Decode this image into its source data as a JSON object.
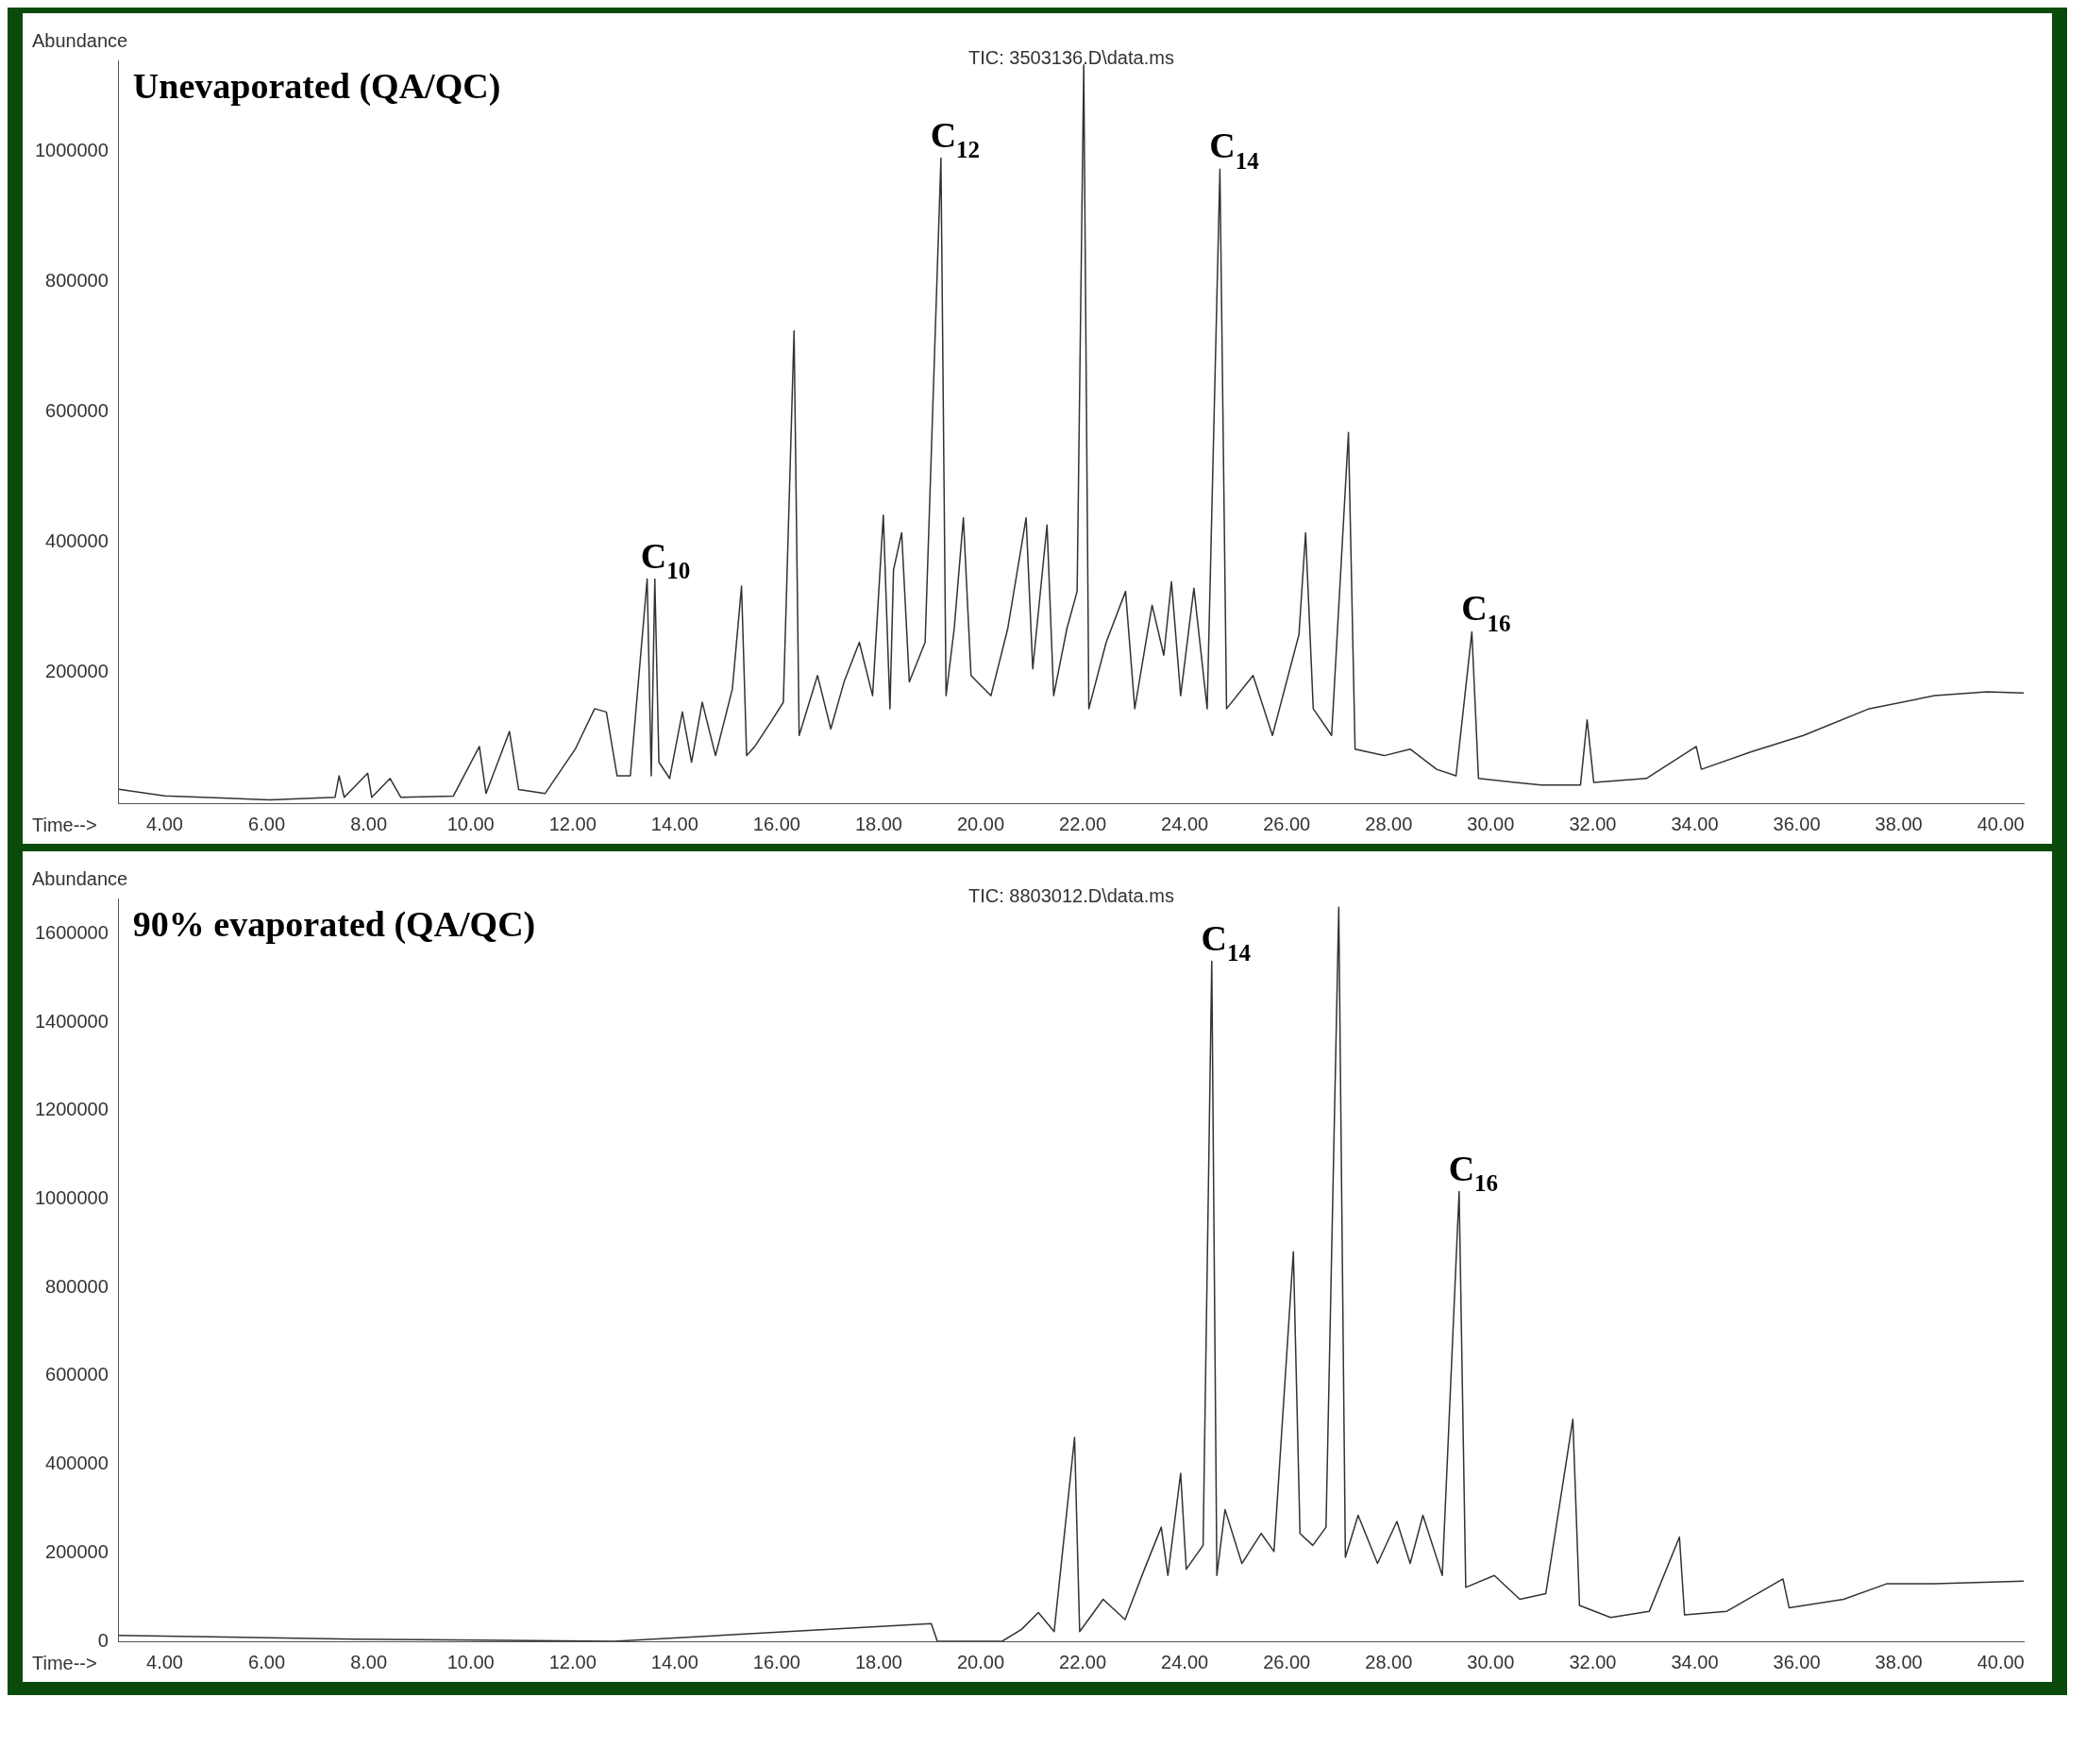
{
  "chart_data": [
    {
      "type": "line",
      "title": "TIC: 3503136.D\\data.ms",
      "xlabel": "Time-->",
      "ylabel": "Abundance",
      "annotations": [
        "Unevaporated (QA/QC)",
        {
          "text": "C$_{10}$",
          "x": 13.54,
          "y": 344000
        },
        {
          "text": "C$_{12}$",
          "x": 19.22,
          "y": 990000
        },
        {
          "text": "C$_{14}$",
          "x": 24.69,
          "y": 973000
        },
        {
          "text": "C$_{16}$",
          "x": 29.63,
          "y": 263000
        }
      ],
      "xlim": [
        3.1,
        40.45
      ],
      "xticks": [
        {
          "value": 4,
          "label": "4.00"
        },
        {
          "value": 6,
          "label": "6.00"
        },
        {
          "value": 8,
          "label": "8.00"
        },
        {
          "value": 10,
          "label": "10.00"
        },
        {
          "value": 12,
          "label": "12.00"
        },
        {
          "value": 14,
          "label": "14.00"
        },
        {
          "value": 16,
          "label": "16.00"
        },
        {
          "value": 18,
          "label": "18.00"
        },
        {
          "value": 20,
          "label": "20.00"
        },
        {
          "value": 22,
          "label": "22.00"
        },
        {
          "value": 24,
          "label": "24.00"
        },
        {
          "value": 26,
          "label": "26.00"
        },
        {
          "value": 28,
          "label": "28.00"
        },
        {
          "value": 30,
          "label": "30.00"
        },
        {
          "value": 32,
          "label": "32.00"
        },
        {
          "value": 34,
          "label": "34.00"
        },
        {
          "value": 36,
          "label": "36.00"
        },
        {
          "value": 38,
          "label": "38.00"
        },
        {
          "value": 40,
          "label": "40.00"
        }
      ],
      "ylim": [
        0,
        1140000
      ],
      "yticks": [
        200000,
        400000,
        600000,
        800000,
        1000000
      ],
      "series": [
        {
          "color": "#333333",
          "x": [
            3.1,
            4.0,
            6.06,
            7.34,
            7.42,
            7.52,
            7.98,
            8.06,
            8.42,
            8.63,
            9.66,
            10.17,
            10.3,
            10.76,
            10.94,
            11.46,
            12.05,
            12.43,
            12.66,
            12.87,
            13.13,
            13.46,
            13.54,
            13.61,
            13.69,
            13.9,
            14.15,
            14.33,
            14.54,
            14.8,
            15.13,
            15.31,
            15.41,
            15.57,
            15.88,
            16.13,
            16.34,
            16.44,
            16.8,
            17.06,
            17.32,
            17.62,
            17.88,
            18.09,
            18.22,
            18.29,
            18.45,
            18.6,
            18.91,
            19.22,
            19.32,
            19.48,
            19.66,
            19.81,
            20.2,
            20.53,
            20.89,
            21.02,
            21.3,
            21.43,
            21.69,
            21.89,
            22.02,
            22.12,
            22.46,
            22.84,
            23.02,
            23.36,
            23.59,
            23.74,
            23.92,
            24.18,
            24.44,
            24.69,
            24.82,
            25.34,
            25.72,
            26.24,
            26.37,
            26.52,
            26.88,
            27.21,
            27.34,
            27.91,
            28.42,
            28.94,
            29.32,
            29.63,
            29.76,
            30.48,
            30.99,
            31.76,
            31.89,
            32.02,
            33.05,
            34.03,
            34.13,
            35.11,
            36.13,
            37.42,
            38.7,
            39.73,
            40.45
          ],
          "values": [
            21500,
            11300,
            5100,
            9200,
            42000,
            9000,
            46000,
            9000,
            38000,
            9000,
            11000,
            87000,
            15000,
            110000,
            21000,
            15000,
            83000,
            145000,
            140000,
            42000,
            42000,
            344000,
            42000,
            344000,
            63000,
            38000,
            140000,
            63000,
            155000,
            73000,
            175000,
            333000,
            73000,
            87000,
            124000,
            155000,
            725000,
            104000,
            196000,
            114000,
            186000,
            247000,
            165000,
            442000,
            145000,
            358000,
            415000,
            186000,
            247000,
            990000,
            165000,
            268000,
            438000,
            196000,
            165000,
            268000,
            438000,
            206000,
            427000,
            165000,
            268000,
            325000,
            1133000,
            145000,
            247000,
            325000,
            145000,
            304000,
            227000,
            340000,
            165000,
            330000,
            145000,
            973000,
            145000,
            196000,
            104000,
            259000,
            415000,
            145000,
            104000,
            569000,
            83000,
            73000,
            83000,
            52000,
            42000,
            263000,
            38000,
            32000,
            28000,
            28000,
            128000,
            32000,
            38000,
            87000,
            52000,
            79000,
            104000,
            145000,
            165000,
            171000,
            169000
          ]
        }
      ]
    },
    {
      "type": "line",
      "title": "TIC: 8803012.D\\data.ms",
      "xlabel": "Time-->",
      "ylabel": "Abundance",
      "annotations": [
        "90% evaporated (QA/QC)",
        {
          "text": "C$_{14}$",
          "x": 24.53,
          "y": 1538000
        },
        {
          "text": "C$_{16}$",
          "x": 29.38,
          "y": 1017000
        }
      ],
      "xlim": [
        3.1,
        40.45
      ],
      "xticks": [
        {
          "value": 4,
          "label": "4.00"
        },
        {
          "value": 6,
          "label": "6.00"
        },
        {
          "value": 8,
          "label": "8.00"
        },
        {
          "value": 10,
          "label": "10.00"
        },
        {
          "value": 12,
          "label": "12.00"
        },
        {
          "value": 14,
          "label": "14.00"
        },
        {
          "value": 16,
          "label": "16.00"
        },
        {
          "value": 18,
          "label": "18.00"
        },
        {
          "value": 20,
          "label": "20.00"
        },
        {
          "value": 22,
          "label": "22.00"
        },
        {
          "value": 24,
          "label": "24.00"
        },
        {
          "value": 26,
          "label": "26.00"
        },
        {
          "value": 28,
          "label": "28.00"
        },
        {
          "value": 30,
          "label": "30.00"
        },
        {
          "value": 32,
          "label": "32.00"
        },
        {
          "value": 34,
          "label": "34.00"
        },
        {
          "value": 36,
          "label": "36.00"
        },
        {
          "value": 38,
          "label": "38.00"
        },
        {
          "value": 40,
          "label": "40.00"
        }
      ],
      "ylim": [
        0,
        1680000
      ],
      "yticks": [
        0,
        200000,
        400000,
        600000,
        800000,
        1000000,
        1200000,
        1400000,
        1600000
      ],
      "series": [
        {
          "color": "#333333",
          "x": [
            3.1,
            7.73,
            12.81,
            19.03,
            19.15,
            20.42,
            20.8,
            21.13,
            21.44,
            21.84,
            21.94,
            22.4,
            22.83,
            23.21,
            23.54,
            23.67,
            23.92,
            24.03,
            24.36,
            24.53,
            24.63,
            24.79,
            25.12,
            25.5,
            25.75,
            26.13,
            26.26,
            26.51,
            26.77,
            27.02,
            27.15,
            27.4,
            27.78,
            28.16,
            28.42,
            28.67,
            29.05,
            29.38,
            29.51,
            30.07,
            30.57,
            31.08,
            31.61,
            31.74,
            32.35,
            33.11,
            33.7,
            33.8,
            34.63,
            35.73,
            35.85,
            36.92,
            37.76,
            38.7,
            40.45
          ],
          "values": [
            13600,
            5000,
            0,
            40000,
            0,
            0,
            27000,
            65000,
            22000,
            461000,
            22000,
            95000,
            49000,
            163000,
            258000,
            149000,
            380000,
            163000,
            217000,
            1538000,
            149000,
            298000,
            176000,
            244000,
            203000,
            881000,
            244000,
            217000,
            258000,
            1660000,
            190000,
            285000,
            176000,
            271000,
            176000,
            285000,
            149000,
            1017000,
            122000,
            149000,
            95000,
            108000,
            502000,
            81000,
            54000,
            68000,
            236000,
            60000,
            68000,
            141000,
            76000,
            95000,
            130000,
            130000,
            136000
          ]
        }
      ]
    }
  ]
}
